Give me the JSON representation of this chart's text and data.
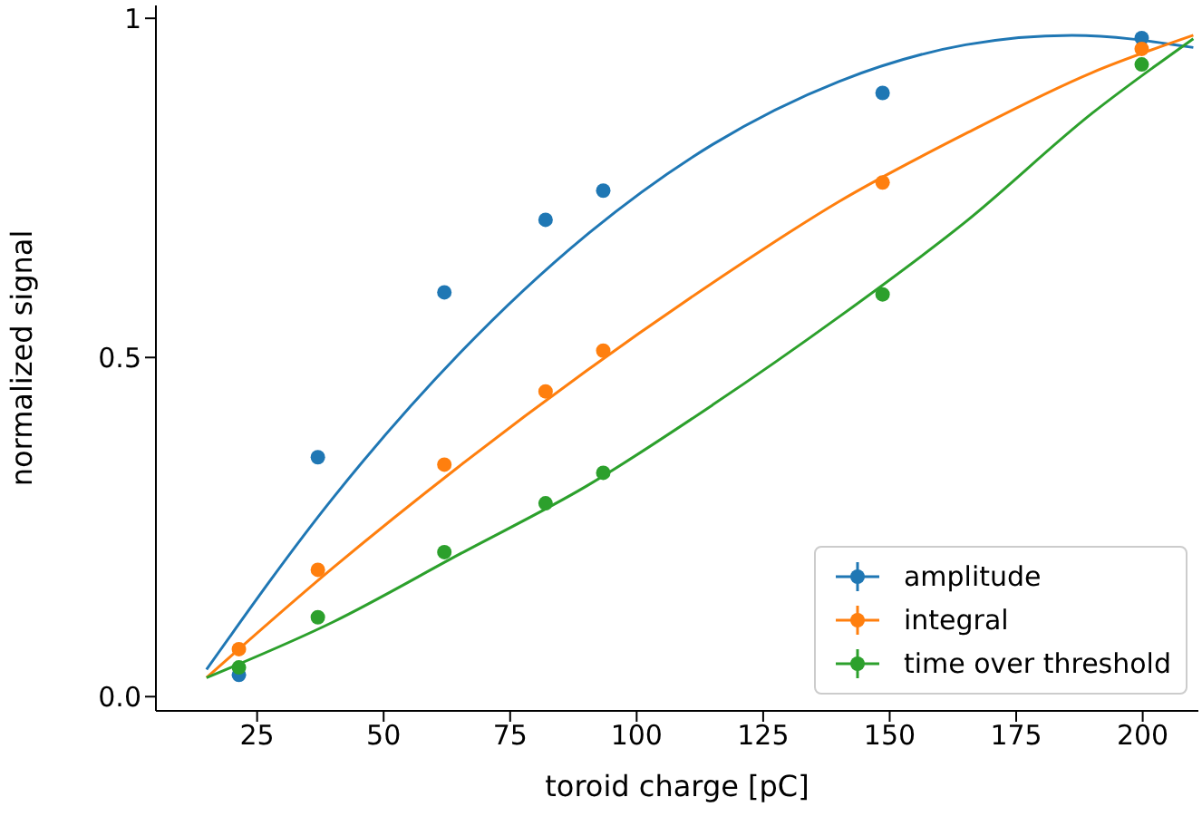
{
  "chart_data": {
    "type": "scatter",
    "xlabel": "toroid charge [pC]",
    "ylabel": "normalized signal",
    "xlim": [
      5,
      211
    ],
    "ylim": [
      -0.021,
      1.019
    ],
    "xticks": [
      25,
      50,
      75,
      100,
      125,
      150,
      175,
      200
    ],
    "yticks": [
      {
        "value": 0,
        "label": "0.0"
      },
      {
        "value": 0.5,
        "label": "0.5"
      },
      {
        "value": 1,
        "label": "1"
      }
    ],
    "grid": false,
    "legend": "bottom right",
    "series": [
      {
        "name": "amplitude",
        "color": "#1f77b4",
        "marker": "circle",
        "x": [
          21.4,
          37,
          62,
          82,
          93.4,
          148.6,
          199.8
        ],
        "values": [
          0.032,
          0.353,
          0.596,
          0.703,
          0.746,
          0.89,
          0.971
        ]
      },
      {
        "name": "integral",
        "color": "#ff7f0e",
        "marker": "circle",
        "x": [
          21.4,
          37,
          62,
          82,
          93.4,
          148.6,
          199.8
        ],
        "values": [
          0.07,
          0.187,
          0.342,
          0.45,
          0.51,
          0.758,
          0.955
        ]
      },
      {
        "name": "time over threshold",
        "color": "#2ca02c",
        "marker": "circle",
        "x": [
          21.4,
          37,
          62,
          82,
          93.4,
          148.6,
          199.8
        ],
        "values": [
          0.043,
          0.117,
          0.213,
          0.285,
          0.33,
          0.593,
          0.932
        ]
      },
      {
        "color": "#1f77b4",
        "type": "line",
        "marker": "none",
        "x": [
          15,
          40,
          65,
          90,
          115,
          140,
          165,
          186,
          210
        ],
        "values": [
          0.04,
          0.293,
          0.506,
          0.68,
          0.814,
          0.907,
          0.961,
          0.975,
          0.957
        ]
      },
      {
        "color": "#ff7f0e",
        "type": "line",
        "marker": "none",
        "x": [
          15,
          40,
          65,
          90,
          115,
          140,
          165,
          190,
          210
        ],
        "values": [
          0.028,
          0.19,
          0.34,
          0.48,
          0.61,
          0.73,
          0.83,
          0.92,
          0.975
        ]
      },
      {
        "color": "#2ca02c",
        "type": "line",
        "marker": "none",
        "x": [
          15,
          40,
          65,
          90,
          115,
          140,
          165,
          190,
          210
        ],
        "values": [
          0.028,
          0.11,
          0.21,
          0.31,
          0.43,
          0.56,
          0.7,
          0.86,
          0.97
        ]
      }
    ]
  }
}
